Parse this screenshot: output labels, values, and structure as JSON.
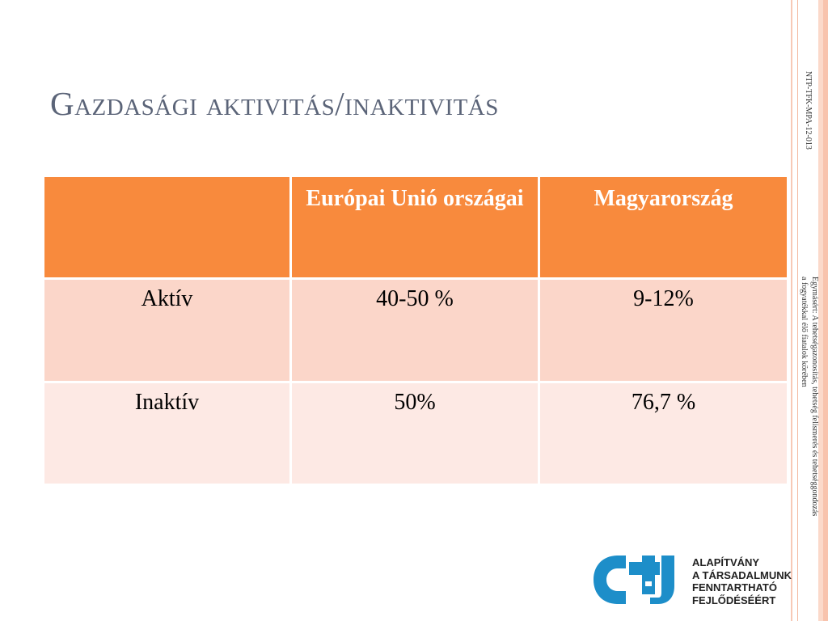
{
  "slide": {
    "title": "Gazdasági aktivitás/inaktivitás"
  },
  "table": {
    "headers": [
      "",
      "Európai Unió országai",
      "Magyarország"
    ],
    "rows": [
      {
        "label": "Aktív",
        "eu": "40-50 %",
        "hu": "9-12%"
      },
      {
        "label": "Inaktív",
        "eu": "50%",
        "hu": "76,7 %"
      }
    ]
  },
  "side": {
    "code": "NTP-TFK-MPA-12-013",
    "description": "Egymásért: A tehetségazonosítás, tehetség felismerés és tehetséggondozás a fogyatékkal élő fiatalok körében"
  },
  "logo": {
    "lines": [
      "ALAPÍTVÁNY",
      "A TÁRSADALMUNK",
      "FENNTARTHATÓ",
      "FEJLŐDÉSÉÉRT"
    ]
  },
  "colors": {
    "header_bg": "#f88a3d",
    "row1_bg": "#fbd6c9",
    "row2_bg": "#fde9e4",
    "logo_blue": "#1d8ec9"
  }
}
